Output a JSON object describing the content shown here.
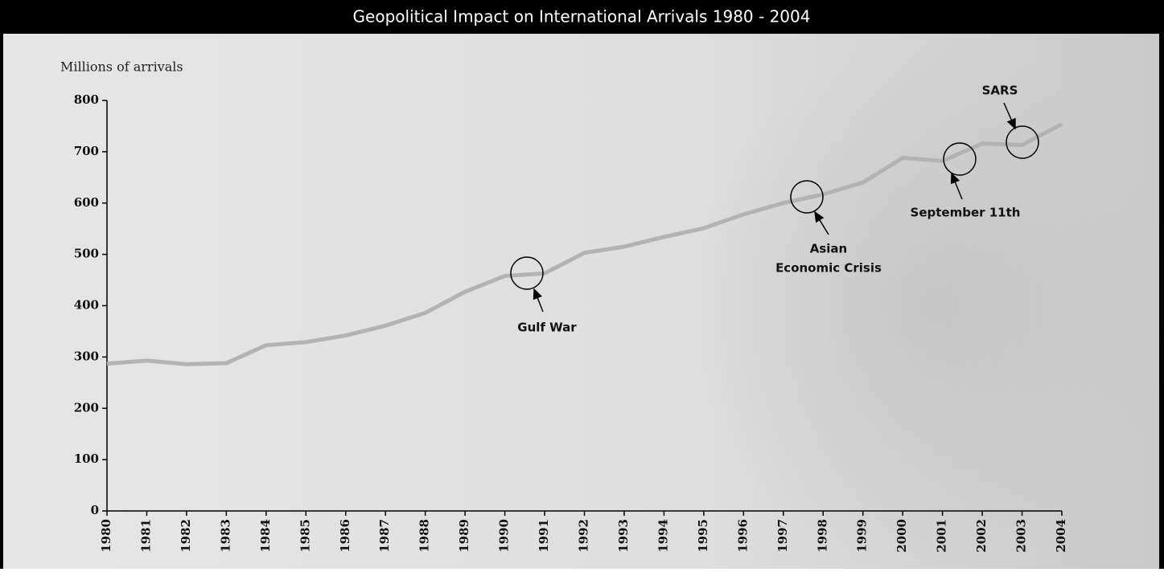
{
  "chart_data": {
    "type": "line",
    "title": "Geopolitical Impact on International Arrivals 1980 - 2004",
    "y_label": "Millions of arrivals",
    "x": [
      1980,
      1981,
      1982,
      1983,
      1984,
      1985,
      1986,
      1987,
      1988,
      1989,
      1990,
      1991,
      1992,
      1993,
      1994,
      1995,
      1996,
      1997,
      1998,
      1999,
      2000,
      2001,
      2002,
      2003,
      2004
    ],
    "values": [
      287,
      293,
      286,
      288,
      323,
      329,
      342,
      361,
      386,
      427,
      458,
      463,
      503,
      515,
      534,
      551,
      578,
      600,
      617,
      640,
      688,
      682,
      716,
      713,
      754
    ],
    "color": "#b3b3b3",
    "xlim": [
      1980,
      2004
    ],
    "xticks": [
      1980,
      1981,
      1982,
      1983,
      1984,
      1985,
      1986,
      1987,
      1988,
      1989,
      1990,
      1991,
      1992,
      1993,
      1994,
      1995,
      1996,
      1997,
      1998,
      1999,
      2000,
      2001,
      2002,
      2003,
      2004
    ],
    "ylim": [
      0,
      800
    ],
    "yticks": [
      0,
      100,
      200,
      300,
      400,
      500,
      600,
      700,
      800
    ],
    "annotations": [
      {
        "lines": [
          "Gulf War"
        ]
      },
      {
        "lines": [
          "Asian",
          "Economic Crisis"
        ]
      },
      {
        "lines": [
          "September 11th"
        ]
      },
      {
        "lines": [
          "SARS"
        ]
      }
    ]
  }
}
